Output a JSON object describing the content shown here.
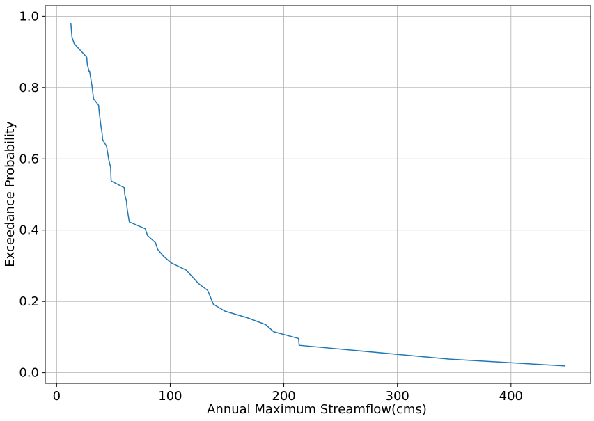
{
  "chart_data": {
    "type": "line",
    "title": "",
    "xlabel": "Annual Maximum Streamflow(cms)",
    "ylabel": "Exceedance Probability",
    "xlim": [
      -10,
      470
    ],
    "ylim": [
      -0.03,
      1.03
    ],
    "xticks": [
      0,
      100,
      200,
      300,
      400
    ],
    "xtick_labels": [
      "0",
      "100",
      "200",
      "300",
      "400"
    ],
    "yticks": [
      0.0,
      0.2,
      0.4,
      0.6,
      0.8,
      1.0
    ],
    "ytick_labels": [
      "0.0",
      "0.2",
      "0.4",
      "0.6",
      "0.8",
      "1.0"
    ],
    "grid": true,
    "line_color": "#1f77b4",
    "series": [
      {
        "x": [
          12.5,
          13.5,
          15.5,
          26.5,
          27,
          28.5,
          29,
          30,
          31,
          32.5,
          37,
          37.5,
          39,
          40,
          40.5,
          44,
          45,
          46,
          47.5,
          48,
          59.5,
          60,
          61.5,
          62,
          63,
          64,
          78,
          80,
          87,
          89,
          94,
          101,
          114,
          125,
          133,
          138,
          148,
          168,
          184,
          191,
          213,
          213.5,
          346,
          448
        ],
        "y": [
          0.981,
          0.942,
          0.923,
          0.885,
          0.865,
          0.846,
          0.846,
          0.827,
          0.808,
          0.769,
          0.75,
          0.731,
          0.692,
          0.673,
          0.654,
          0.635,
          0.615,
          0.596,
          0.577,
          0.538,
          0.519,
          0.5,
          0.481,
          0.462,
          0.442,
          0.423,
          0.404,
          0.385,
          0.365,
          0.346,
          0.327,
          0.308,
          0.288,
          0.25,
          0.231,
          0.192,
          0.173,
          0.154,
          0.135,
          0.115,
          0.096,
          0.077,
          0.038,
          0.019
        ]
      }
    ]
  }
}
